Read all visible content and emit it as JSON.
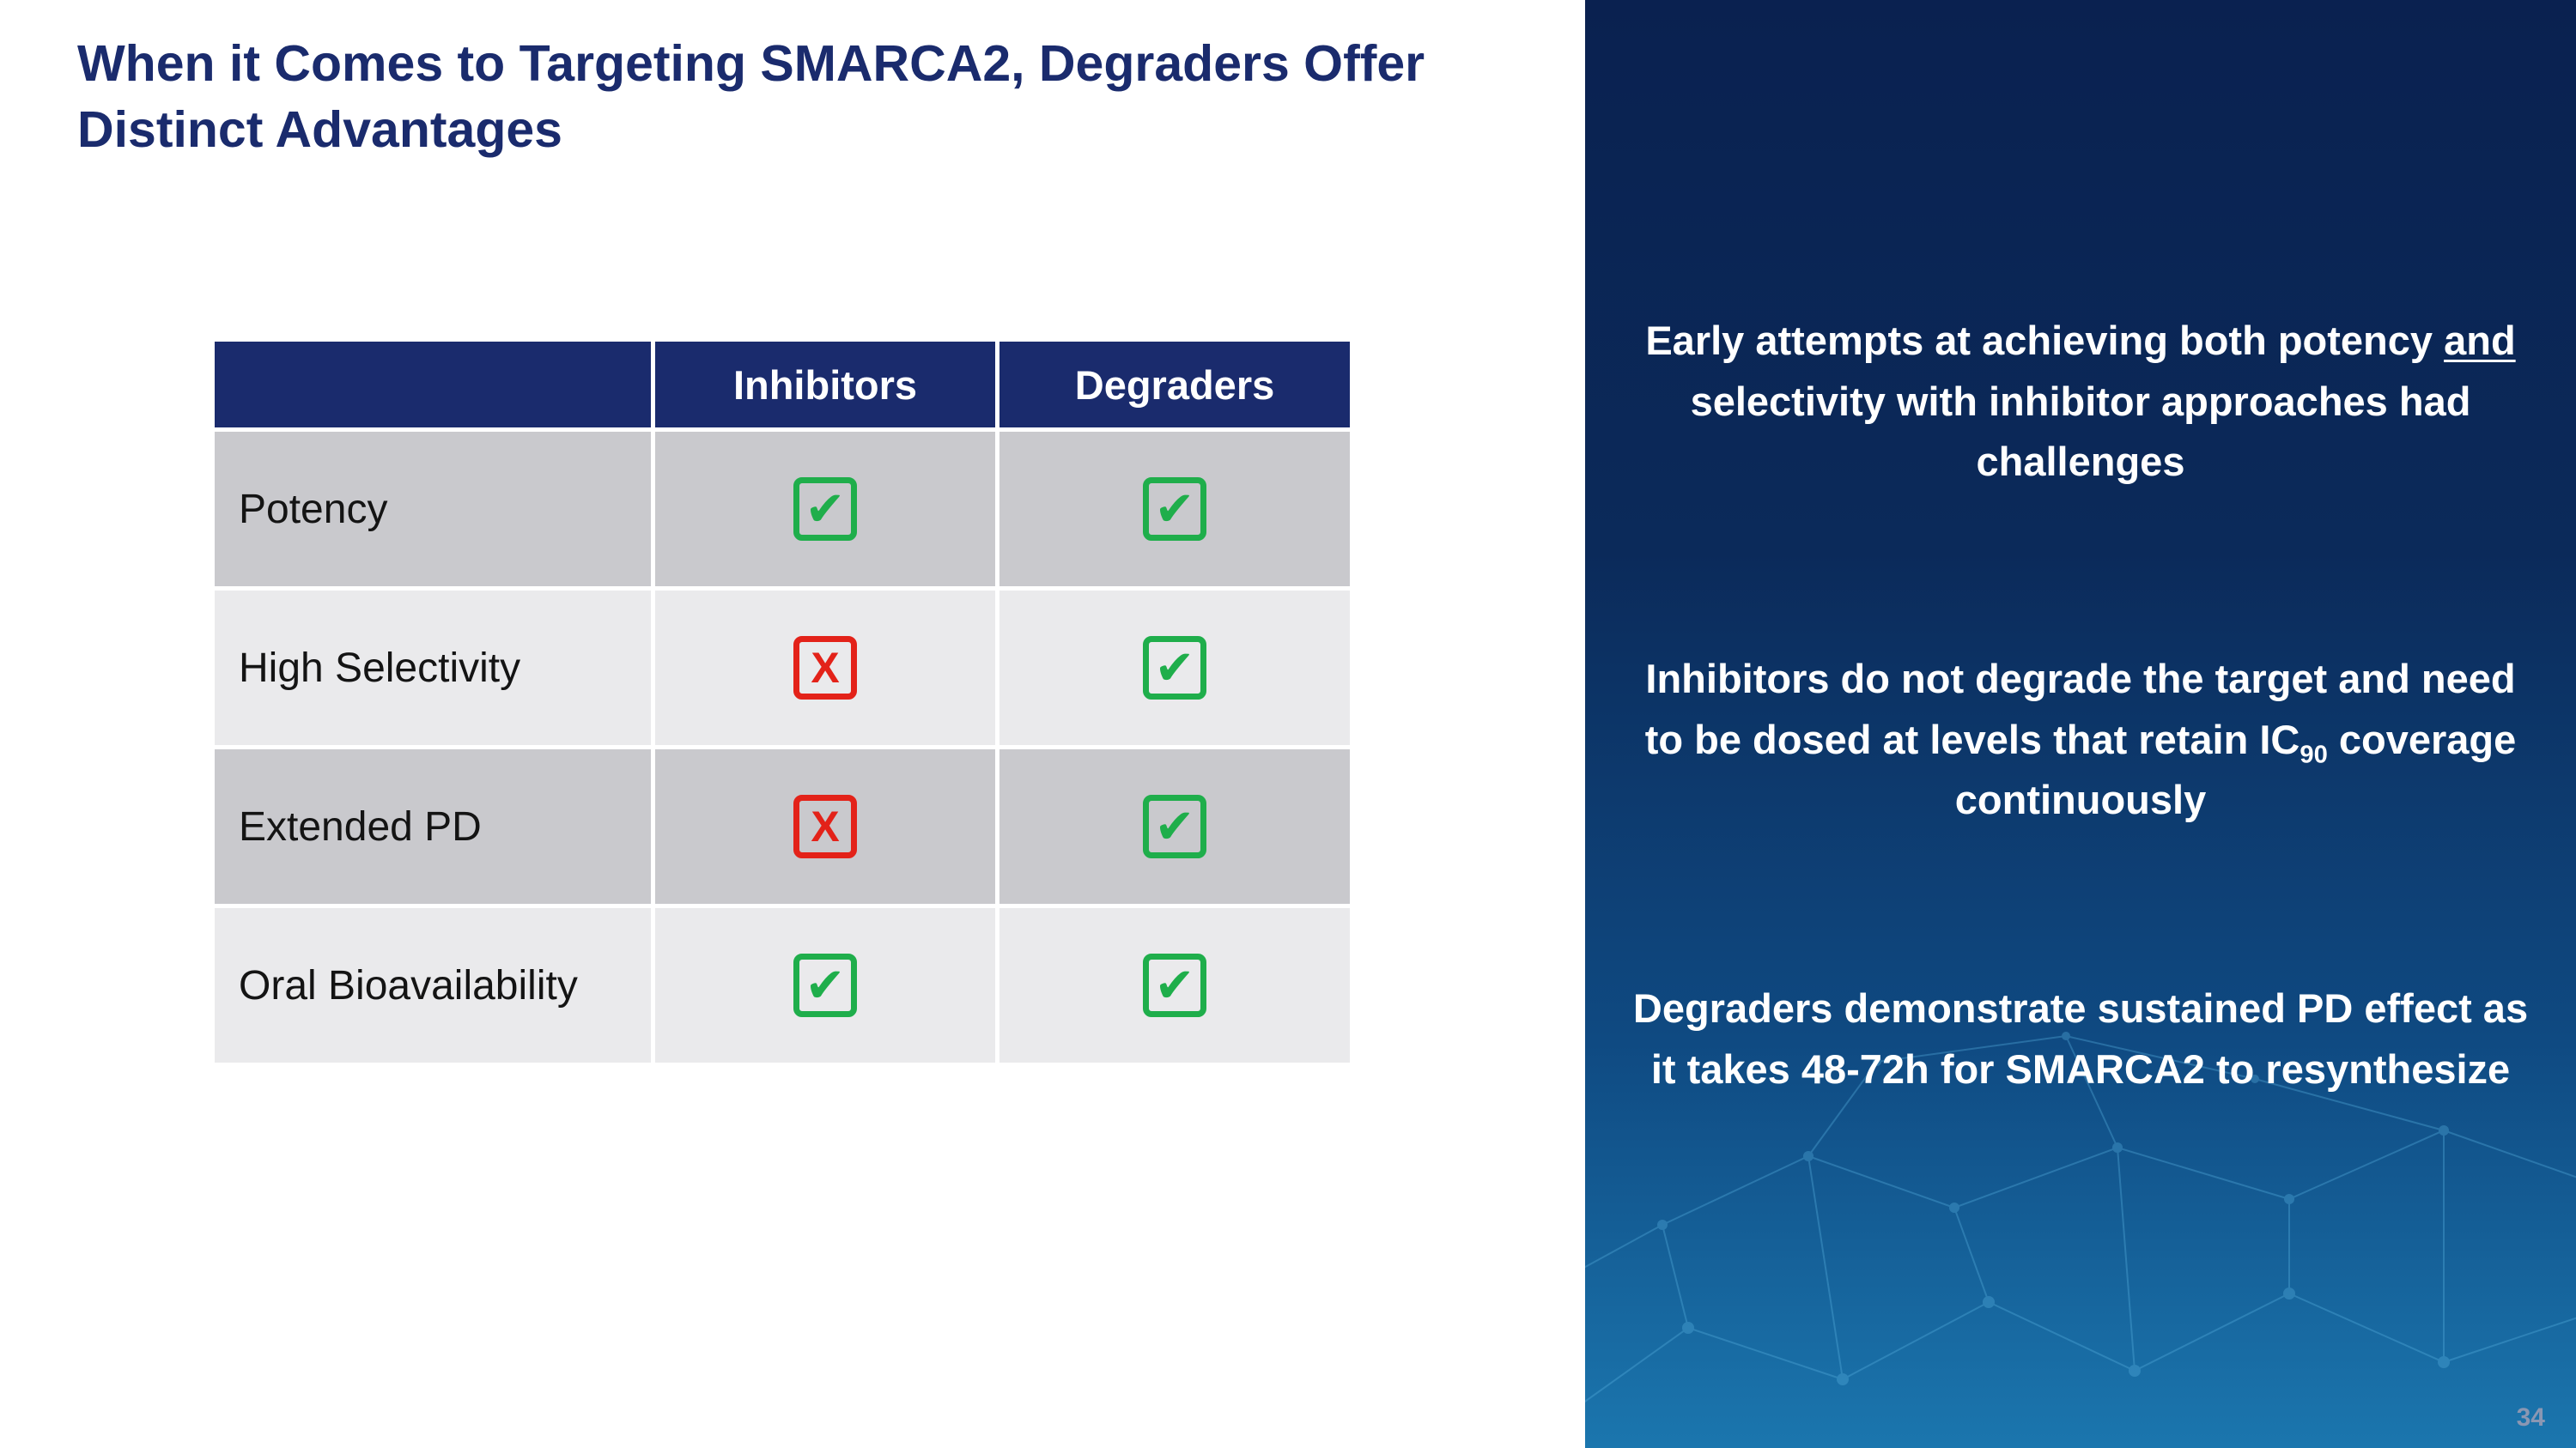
{
  "slide": {
    "title": "When it Comes to Targeting SMARCA2, Degraders Offer Distinct Advantages",
    "page_number": "34"
  },
  "table": {
    "columns": [
      "",
      "Inhibitors",
      "Degraders"
    ],
    "rows": [
      {
        "label": "Potency",
        "inhibitors": "check",
        "degraders": "check"
      },
      {
        "label": "High Selectivity",
        "inhibitors": "x",
        "degraders": "check"
      },
      {
        "label": "Extended PD",
        "inhibitors": "x",
        "degraders": "check"
      },
      {
        "label": "Oral Bioavailability",
        "inhibitors": "check",
        "degraders": "check"
      }
    ],
    "icons": {
      "check": {
        "name": "check-icon",
        "glyph": "✔"
      },
      "x": {
        "name": "x-icon",
        "glyph": "X"
      }
    }
  },
  "panel": {
    "block1": {
      "pre": "Early attempts at achieving both potency ",
      "underline": "and",
      "post": " selectivity with inhibitor approaches had challenges"
    },
    "block2": {
      "pre": "Inhibitors do not degrade the target and need to be dosed at levels that retain IC",
      "sub": "90",
      "post": " coverage continuously"
    },
    "block3": {
      "text": "Degraders demonstrate sustained PD effect as it takes 48-72h for SMARCA2 to resynthesize"
    }
  },
  "colors": {
    "navy": "#1a2b6d",
    "green": "#1fae4b",
    "red": "#e32219",
    "row_dark": "#c9c9cd",
    "row_light": "#eaeaec",
    "panel_top": "#0a2150",
    "panel_bottom": "#1b76ae",
    "page_number": "#8a97b3",
    "mesh": "#58b1e0"
  }
}
